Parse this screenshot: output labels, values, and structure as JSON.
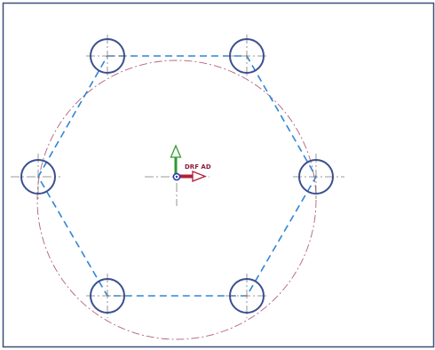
{
  "canvas": {
    "frame_color": "#3b4f7a",
    "background": "#ffffff"
  },
  "sketch": {
    "hole_count": 6,
    "hole_color": "#3b4f8f",
    "hexagon_color": "#2f86d6",
    "pitch_circle_color": "#b06080",
    "centerline_color": "#7a7a7a"
  },
  "datum": {
    "label": "DRF AD",
    "label_color": "#8a1f3a",
    "x_axis_color": "#b0203a",
    "y_axis_color": "#2d9a2d",
    "origin_color": "#2a3aa8"
  }
}
